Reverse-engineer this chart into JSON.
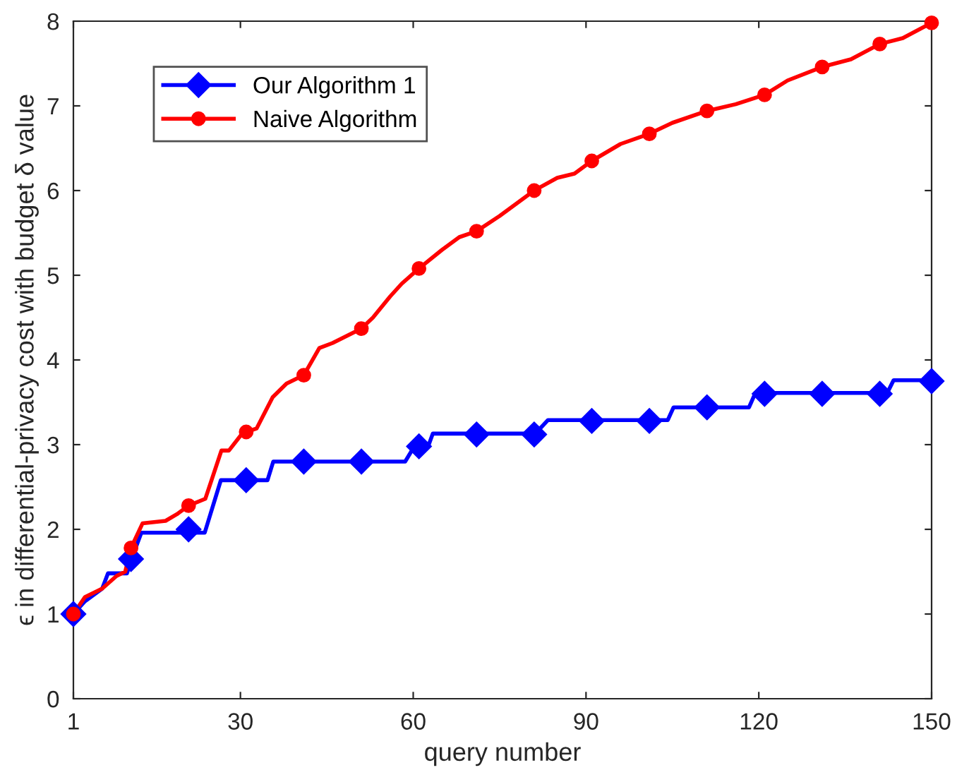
{
  "chart_data": {
    "type": "line",
    "xlabel": "query number",
    "ylabel": "ϵ in differential-privacy cost with budget δ value",
    "xlim": [
      1,
      150
    ],
    "ylim": [
      0,
      8
    ],
    "xticks": [
      1,
      30,
      60,
      90,
      120,
      150
    ],
    "yticks": [
      0,
      1,
      2,
      3,
      4,
      5,
      6,
      7,
      8
    ],
    "grid": false,
    "legend": "top left",
    "line_style": "solid",
    "series": [
      {
        "color": "#0000ff",
        "marker": "none",
        "x": [
          1,
          3,
          6,
          7,
          10.3,
          11.2,
          12.8,
          23.8,
          26.6,
          34.7,
          35.7,
          58.6,
          60.2,
          62.6,
          63.4,
          81.2,
          83.4,
          104.2,
          105.2,
          118.3,
          119.4,
          142.3,
          143.4,
          150
        ],
        "values": [
          1.0,
          1.15,
          1.3,
          1.48,
          1.48,
          1.67,
          1.96,
          1.96,
          2.58,
          2.58,
          2.8,
          2.8,
          2.98,
          2.98,
          3.13,
          3.13,
          3.29,
          3.29,
          3.44,
          3.44,
          3.61,
          3.61,
          3.76,
          3.76
        ]
      },
      {
        "color": "#ff0000",
        "marker": "none",
        "x": [
          1,
          3,
          6,
          8.5,
          10,
          11,
          13,
          17,
          19,
          21,
          23.9,
          26.7,
          28,
          30.4,
          31,
          32.8,
          35.6,
          38,
          41,
          43.7,
          46,
          51,
          53,
          56,
          58,
          61,
          65,
          68,
          71,
          75,
          78,
          81,
          85,
          88,
          91,
          96,
          101,
          105,
          111,
          116,
          121,
          125,
          131,
          136,
          141,
          145,
          150
        ],
        "values": [
          1.0,
          1.2,
          1.3,
          1.45,
          1.5,
          1.78,
          2.07,
          2.1,
          2.18,
          2.28,
          2.36,
          2.93,
          2.93,
          3.14,
          3.15,
          3.19,
          3.56,
          3.72,
          3.82,
          4.14,
          4.2,
          4.37,
          4.5,
          4.75,
          4.9,
          5.08,
          5.3,
          5.45,
          5.52,
          5.7,
          5.85,
          6.0,
          6.15,
          6.2,
          6.35,
          6.55,
          6.67,
          6.8,
          6.94,
          7.02,
          7.13,
          7.3,
          7.46,
          7.55,
          7.73,
          7.8,
          7.98
        ]
      },
      {
        "type": "scatter",
        "name": "Our Algorithm 1",
        "color": "#0000ff",
        "marker": "diamond",
        "x": [
          1,
          11,
          21,
          31,
          41,
          51,
          61,
          71,
          81,
          91,
          101,
          111,
          121,
          131,
          141,
          150
        ],
        "values": [
          1.0,
          1.65,
          2.0,
          2.58,
          2.8,
          2.8,
          2.98,
          3.12,
          3.12,
          3.28,
          3.28,
          3.44,
          3.6,
          3.6,
          3.6,
          3.75
        ]
      },
      {
        "type": "scatter",
        "name": "Naive Algorithm",
        "color": "#ff0000",
        "marker": "circle",
        "x": [
          1,
          11,
          21,
          31,
          41,
          51,
          61,
          71,
          81,
          91,
          101,
          111,
          121,
          131,
          141,
          150
        ],
        "values": [
          1.0,
          1.78,
          2.28,
          3.15,
          3.82,
          4.37,
          5.08,
          5.52,
          6.0,
          6.35,
          6.67,
          6.94,
          7.13,
          7.46,
          7.73,
          7.98
        ]
      }
    ]
  }
}
